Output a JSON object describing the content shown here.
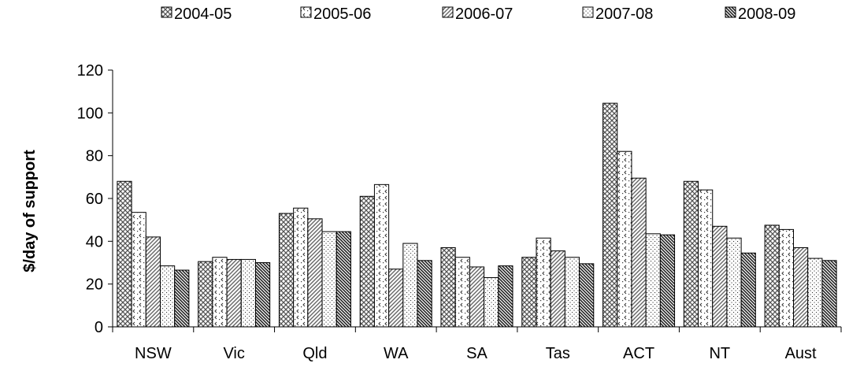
{
  "chart_data": {
    "type": "bar",
    "title": "",
    "xlabel": "",
    "ylabel": "$/day of support",
    "ylim": [
      0,
      120
    ],
    "yticks": [
      0,
      20,
      40,
      60,
      80,
      100,
      120
    ],
    "grid": false,
    "legend_position": "top",
    "categories": [
      "NSW",
      "Vic",
      "Qld",
      "WA",
      "SA",
      "Tas",
      "ACT",
      "NT",
      "Aust"
    ],
    "series": [
      {
        "name": "2004-05",
        "pattern": "crosshatch",
        "values": [
          68,
          30.5,
          53,
          61,
          37,
          32.5,
          104.5,
          68,
          47.5
        ]
      },
      {
        "name": "2005-06",
        "pattern": "chevron-dots",
        "values": [
          53.5,
          32.5,
          55.5,
          66.5,
          32.5,
          41.5,
          82,
          64,
          45.5
        ]
      },
      {
        "name": "2006-07",
        "pattern": "diagonal-lines",
        "values": [
          42,
          31.5,
          50.5,
          27,
          28,
          35.5,
          69.5,
          47,
          37
        ]
      },
      {
        "name": "2007-08",
        "pattern": "dots",
        "values": [
          28.5,
          31.5,
          44.5,
          39,
          23,
          32.5,
          43.5,
          41.5,
          32
        ]
      },
      {
        "name": "2008-09",
        "pattern": "dense-diagonal",
        "values": [
          26.5,
          30,
          44.5,
          31,
          28.5,
          29.5,
          43,
          34.5,
          31
        ]
      }
    ]
  }
}
